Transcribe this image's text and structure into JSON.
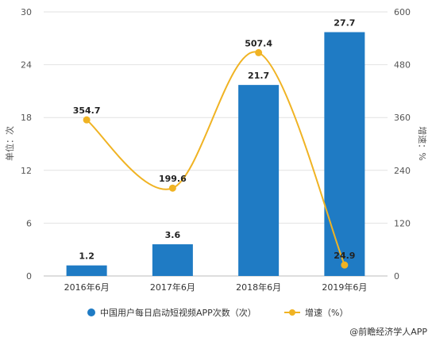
{
  "chart_data": {
    "type": "bar",
    "categories": [
      "2016年6月",
      "2017年6月",
      "2018年6月",
      "2019年6月"
    ],
    "series": [
      {
        "name": "中国用户每日启动短视频APP次数（次）",
        "kind": "bar",
        "axis": "left",
        "color": "#1f7bc4",
        "values": [
          1.2,
          3.6,
          21.7,
          27.7
        ],
        "labels": [
          "1.2",
          "3.6",
          "21.7",
          "27.7"
        ]
      },
      {
        "name": "增速（%）",
        "kind": "line",
        "axis": "right",
        "color": "#f0b323",
        "values": [
          354.7,
          199.6,
          507.4,
          24.9
        ],
        "labels": [
          "354.7",
          "199.6",
          "507.4",
          "24.9"
        ]
      }
    ],
    "ylabel": "单位：次",
    "y2label": "增速：%",
    "ylim": [
      0,
      30
    ],
    "y2lim": [
      0,
      600
    ],
    "yticks": [
      "0",
      "6",
      "12",
      "18",
      "24",
      "30"
    ],
    "y2ticks": [
      "0",
      "120",
      "240",
      "360",
      "480",
      "600"
    ],
    "grid": true,
    "legend": "bottom"
  },
  "source": "@前瞻经济学人APP"
}
